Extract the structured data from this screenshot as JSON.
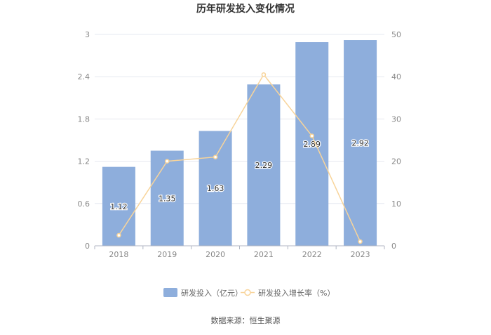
{
  "chart_data": {
    "type": "bar",
    "title": "历年研发投入变化情况",
    "categories": [
      "2018",
      "2019",
      "2020",
      "2021",
      "2022",
      "2023"
    ],
    "series": [
      {
        "name": "研发投入（亿元）",
        "type": "bar",
        "axis": "left",
        "values": [
          1.12,
          1.35,
          1.63,
          2.29,
          2.89,
          2.92
        ],
        "data_labels": [
          "1.12",
          "1.35",
          "1.63",
          "2.29",
          "2.89",
          "2.92"
        ],
        "color": "#8eaedc"
      },
      {
        "name": "研发投入增长率（%）",
        "type": "line",
        "axis": "right",
        "values": [
          2.5,
          20.0,
          21.0,
          40.5,
          26.0,
          1.0
        ],
        "color": "#f8d49a"
      }
    ],
    "y_left": {
      "ticks": [
        "0",
        "0.6",
        "1.2",
        "1.8",
        "2.4",
        "3"
      ],
      "ylim": [
        0,
        3
      ]
    },
    "y_right": {
      "ticks": [
        "0",
        "10",
        "20",
        "30",
        "40",
        "50"
      ],
      "ylim": [
        0,
        50
      ]
    },
    "grid": true,
    "legend_position": "bottom",
    "source": "数据来源：恒生聚源"
  }
}
